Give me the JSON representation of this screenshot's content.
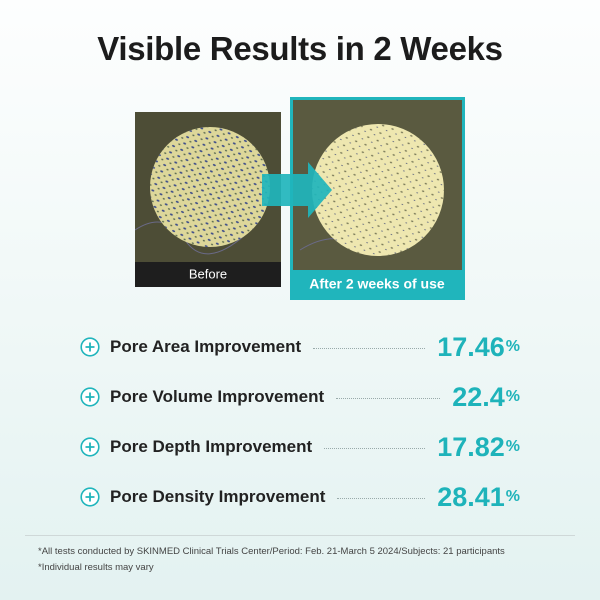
{
  "header": {
    "title": "Visible Results in 2 Weeks"
  },
  "images": {
    "before_label": "Before",
    "after_label": "After 2 weeks of use"
  },
  "metrics": [
    {
      "label": "Pore Area Improvement",
      "value": 17.46,
      "unit": "%"
    },
    {
      "label": "Pore Volume Improvement",
      "value": 22.4,
      "unit": "%"
    },
    {
      "label": "Pore Depth Improvement",
      "value": 17.82,
      "unit": "%"
    },
    {
      "label": "Pore Density Improvement",
      "value": 28.41,
      "unit": "%"
    }
  ],
  "footnotes": [
    "*All tests conducted by SKINMED Clinical Trials Center/Period: Feb. 21-March 5 2024/Subjects: 21 participants",
    "*Individual results may vary"
  ]
}
